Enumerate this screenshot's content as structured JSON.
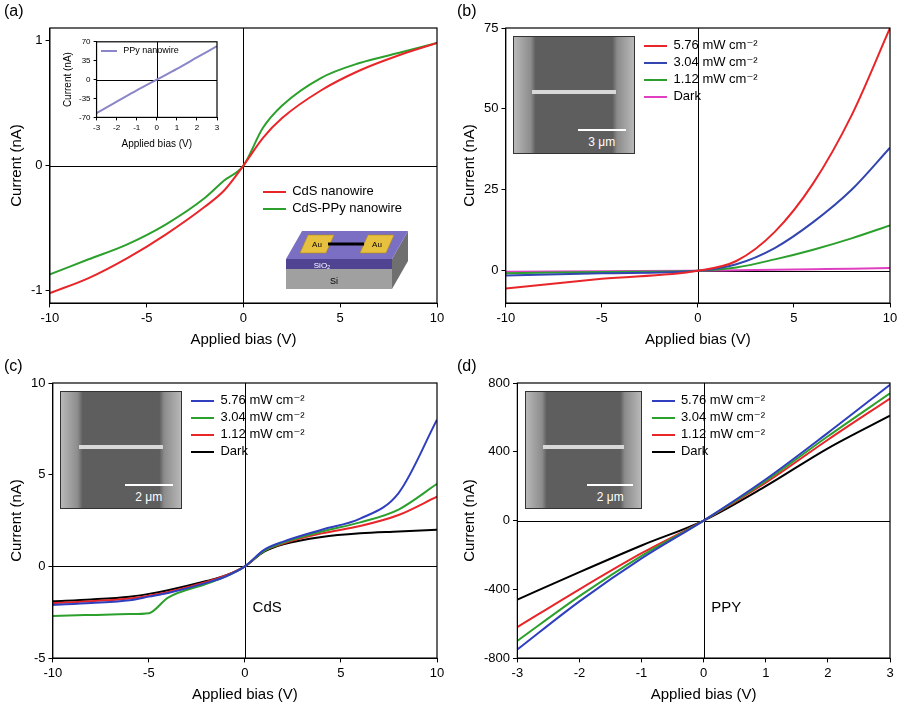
{
  "chart_data": [
    {
      "panel_label": "(a)",
      "type": "line",
      "x_label": "Applied bias (V)",
      "y_label": "Current (nA)",
      "x": [
        -10,
        -8,
        -6,
        -4,
        -2,
        -1,
        0,
        1,
        2,
        4,
        6,
        8,
        10
      ],
      "series": [
        {
          "name": "CdS nanowire",
          "color": "#e8262a",
          "values": [
            -1.02,
            -0.9,
            -0.74,
            -0.55,
            -0.33,
            -0.2,
            0,
            0.22,
            0.38,
            0.6,
            0.76,
            0.88,
            0.98
          ]
        },
        {
          "name": "CdS-PPy nanowire",
          "color": "#2ca02c",
          "values": [
            -0.87,
            -0.75,
            -0.63,
            -0.47,
            -0.26,
            -0.12,
            0,
            0.3,
            0.48,
            0.7,
            0.82,
            0.9,
            0.98
          ]
        }
      ],
      "xlim": [
        -10,
        10
      ],
      "xticks": [
        -10,
        -5,
        0,
        5,
        10
      ],
      "ylim": [
        -1.1,
        1.1
      ],
      "yticks": [
        -1,
        0,
        1
      ],
      "legend": "lower right",
      "inset_chart": {
        "type": "line",
        "x_label": "Applied bias (V)",
        "y_label": "Current (nA)",
        "x": [
          -3,
          -2,
          -1,
          0,
          1,
          2,
          3
        ],
        "series": [
          {
            "name": "PPy nanowire",
            "color": "#8a86c8",
            "values": [
              -62,
              -41,
              -20,
              0,
              20,
              41,
              62
            ]
          }
        ],
        "xlim": [
          -3,
          3
        ],
        "xticks": [
          -3,
          -2,
          -1,
          0,
          1,
          2,
          3
        ],
        "ylim": [
          -70,
          70
        ],
        "yticks": [
          -70,
          -35,
          0,
          35,
          70
        ],
        "legend": "upper left"
      },
      "inset_schematic": {
        "labels": [
          "Au",
          "Au",
          "SiO₂",
          "Si"
        ]
      }
    },
    {
      "panel_label": "(b)",
      "type": "line",
      "x_label": "Applied bias (V)",
      "y_label": "Current (nA)",
      "x": [
        -10,
        -5,
        0,
        2,
        4,
        6,
        8,
        10
      ],
      "series": [
        {
          "name": "5.76 mW cm⁻²",
          "color": "#e8262a",
          "values": [
            -5.5,
            -2.5,
            0,
            3,
            12,
            27,
            48,
            75
          ]
        },
        {
          "name": "3.04 mW cm⁻²",
          "color": "#3346b0",
          "values": [
            -1.5,
            -0.8,
            0,
            2,
            7,
            15,
            25,
            38
          ]
        },
        {
          "name": "1.12 mW cm⁻²",
          "color": "#2ca02c",
          "values": [
            -0.8,
            -0.4,
            0,
            1,
            3.5,
            6.5,
            10,
            14
          ]
        },
        {
          "name": "Dark",
          "color": "#e040c0",
          "values": [
            -0.3,
            -0.15,
            0,
            0.15,
            0.3,
            0.45,
            0.6,
            0.8
          ]
        }
      ],
      "xlim": [
        -10,
        10
      ],
      "xticks": [
        -10,
        -5,
        0,
        5,
        10
      ],
      "ylim": [
        -10,
        75
      ],
      "yticks": [
        0,
        25,
        50,
        75
      ],
      "legend": "top",
      "inset_image": {
        "scale_bar": "3 μm"
      }
    },
    {
      "panel_label": "(c)",
      "type": "line",
      "x_label": "Applied bias (V)",
      "y_label": "Current (nA)",
      "x": [
        -10,
        -8,
        -6,
        -5,
        -4,
        -2,
        -1,
        0,
        1,
        2,
        4,
        6,
        8,
        10
      ],
      "series": [
        {
          "name": "5.76 mW cm⁻²",
          "color": "#2f3fbf",
          "values": [
            -2.1,
            -2.0,
            -1.85,
            -1.65,
            -1.45,
            -0.9,
            -0.55,
            0,
            0.9,
            1.35,
            2.0,
            2.6,
            4.0,
            8.0
          ]
        },
        {
          "name": "3.04 mW cm⁻²",
          "color": "#2ca02c",
          "values": [
            -2.7,
            -2.65,
            -2.6,
            -2.55,
            -1.7,
            -0.95,
            -0.55,
            0,
            0.85,
            1.3,
            1.9,
            2.4,
            3.1,
            4.5
          ]
        },
        {
          "name": "1.12 mW cm⁻²",
          "color": "#e8262a",
          "values": [
            -2.0,
            -1.9,
            -1.75,
            -1.6,
            -1.4,
            -0.85,
            -0.5,
            0,
            0.85,
            1.25,
            1.8,
            2.2,
            2.8,
            3.8
          ]
        },
        {
          "name": "Dark",
          "color": "#000000",
          "values": [
            -1.9,
            -1.8,
            -1.65,
            -1.5,
            -1.3,
            -0.8,
            -0.5,
            0,
            0.8,
            1.2,
            1.6,
            1.8,
            1.9,
            2.0
          ]
        }
      ],
      "xlim": [
        -10,
        10
      ],
      "xticks": [
        -10,
        -5,
        0,
        5,
        10
      ],
      "ylim": [
        -5,
        10
      ],
      "yticks": [
        -5,
        0,
        5,
        10
      ],
      "legend": "top",
      "annotations": [
        "CdS"
      ],
      "inset_image": {
        "scale_bar": "2 μm"
      }
    },
    {
      "panel_label": "(d)",
      "type": "line",
      "x_label": "Applied bias (V)",
      "y_label": "Current (nA)",
      "x": [
        -3,
        -2,
        -1,
        0,
        1,
        2,
        3
      ],
      "series": [
        {
          "name": "5.76 mW cm⁻²",
          "color": "#2f3fbf",
          "values": [
            -750,
            -470,
            -220,
            0,
            240,
            510,
            790
          ]
        },
        {
          "name": "3.04 mW cm⁻²",
          "color": "#2ca02c",
          "values": [
            -700,
            -440,
            -205,
            0,
            230,
            490,
            740
          ]
        },
        {
          "name": "1.12 mW cm⁻²",
          "color": "#e8262a",
          "values": [
            -620,
            -400,
            -190,
            0,
            220,
            470,
            710
          ]
        },
        {
          "name": "Dark",
          "color": "#000000",
          "values": [
            -460,
            -300,
            -145,
            0,
            200,
            420,
            610
          ]
        }
      ],
      "xlim": [
        -3,
        3
      ],
      "xticks": [
        -3,
        -2,
        -1,
        0,
        1,
        2,
        3
      ],
      "ylim": [
        -800,
        800
      ],
      "yticks": [
        -800,
        -400,
        0,
        400,
        800
      ],
      "legend": "top",
      "annotations": [
        "PPY"
      ],
      "inset_image": {
        "scale_bar": "2 μm"
      }
    }
  ]
}
